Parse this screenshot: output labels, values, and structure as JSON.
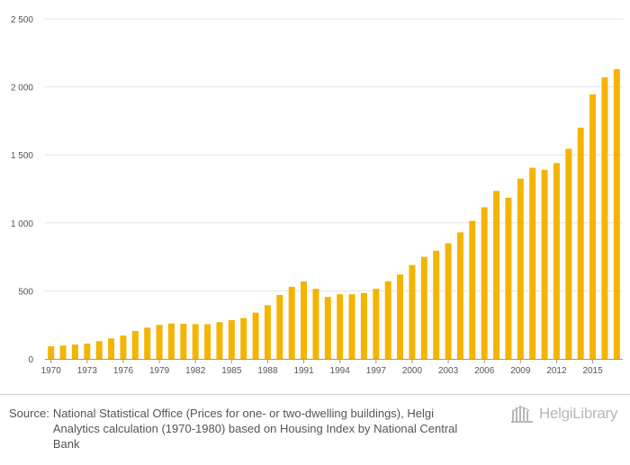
{
  "chart_data": {
    "type": "bar",
    "title": "",
    "xlabel": "",
    "ylabel": "",
    "ylim": [
      0,
      2500
    ],
    "yticks": [
      "0",
      "500",
      "1 000",
      "1 500",
      "2 000",
      "2 500"
    ],
    "ytick_values": [
      0,
      500,
      1000,
      1500,
      2000,
      2500
    ],
    "xtick_labels": [
      "1970",
      "1973",
      "1976",
      "1979",
      "1982",
      "1985",
      "1988",
      "1991",
      "1994",
      "1997",
      "2000",
      "2003",
      "2006",
      "2009",
      "2012",
      "2015"
    ],
    "categories": [
      "1970",
      "1971",
      "1972",
      "1973",
      "1974",
      "1975",
      "1976",
      "1977",
      "1978",
      "1979",
      "1980",
      "1981",
      "1982",
      "1983",
      "1984",
      "1985",
      "1986",
      "1987",
      "1988",
      "1989",
      "1990",
      "1991",
      "1992",
      "1993",
      "1994",
      "1995",
      "1996",
      "1997",
      "1998",
      "1999",
      "2000",
      "2001",
      "2002",
      "2003",
      "2004",
      "2005",
      "2006",
      "2007",
      "2008",
      "2009",
      "2010",
      "2011",
      "2012",
      "2013",
      "2014",
      "2015",
      "2016",
      "2017"
    ],
    "values": [
      92,
      98,
      105,
      112,
      130,
      150,
      172,
      205,
      230,
      250,
      260,
      258,
      255,
      255,
      270,
      285,
      300,
      340,
      395,
      470,
      530,
      570,
      515,
      455,
      475,
      475,
      485,
      515,
      570,
      620,
      690,
      750,
      795,
      850,
      930,
      1015,
      1115,
      1235,
      1185,
      1325,
      1405,
      1390,
      1440,
      1545,
      1700,
      1945,
      2070,
      2130
    ],
    "grid": true,
    "bar_color": "#f4b400"
  },
  "source": {
    "label": "Source:",
    "text": "National Statistical Office (Prices for one- or two-dwelling buildings), Helgi Analytics calculation (1970-1980) based on Housing Index by National Central Bank"
  },
  "logo": {
    "text": "HelgiLibrary",
    "icon": "helgi-library-building-icon",
    "color": "#b8b8b8"
  }
}
